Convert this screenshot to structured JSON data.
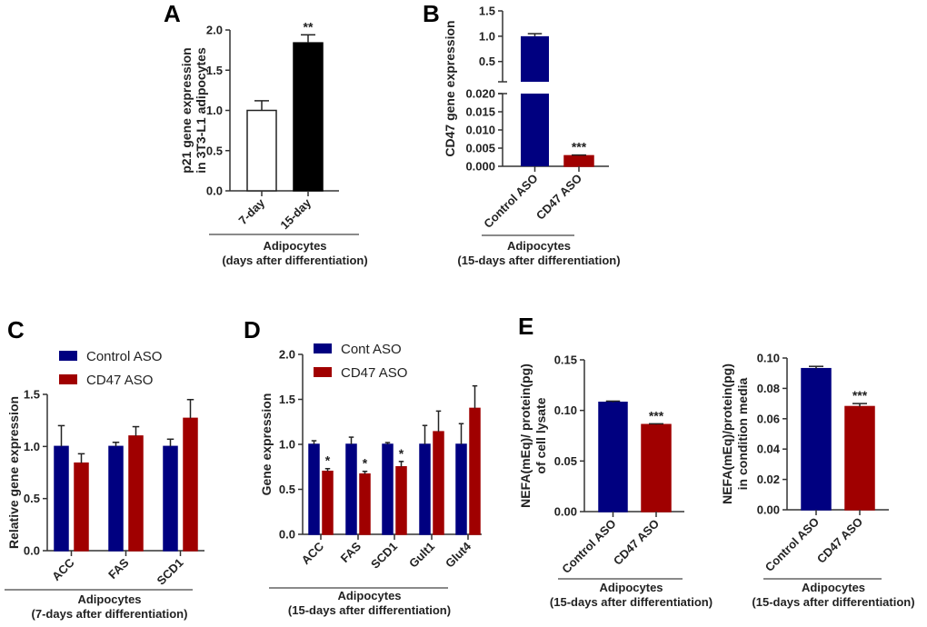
{
  "colors": {
    "control": "#000080",
    "cd47": "#a00000",
    "white": "#ffffff",
    "black": "#000000"
  },
  "chart_data": [
    {
      "panel": "A",
      "type": "bar",
      "ylabel": [
        "p21 gene expression",
        "in 3T3-L1 adipocytes"
      ],
      "ylim": [
        0,
        2.0
      ],
      "yticks": [
        "0.0",
        "0.5",
        "1.0",
        "1.5",
        "2.0"
      ],
      "categories": [
        "7-day",
        "15-day"
      ],
      "series": [
        {
          "values": [
            1.0,
            1.84
          ],
          "errors": [
            0.12,
            0.1
          ],
          "colors": [
            "#ffffff",
            "#000000"
          ]
        }
      ],
      "annotations": [
        "",
        "**"
      ],
      "group_label": [
        "Adipocytes",
        "(days after differentiation)"
      ]
    },
    {
      "panel": "B",
      "type": "bar",
      "ylabel": [
        "CD47 gene expression"
      ],
      "broken_axis": {
        "lower": [
          0,
          0.02
        ],
        "upper": [
          0.1,
          1.5
        ]
      },
      "yticks_lower": [
        "0.000",
        "0.005",
        "0.010",
        "0.015",
        "0.020"
      ],
      "yticks_upper": [
        "0.5",
        "1.0",
        "1.5"
      ],
      "categories": [
        "Control ASO",
        "CD47 ASO"
      ],
      "series": [
        {
          "values": [
            1.0,
            0.0029
          ],
          "errors": [
            0.05,
            0.0002
          ],
          "colors": [
            "#000080",
            "#a00000"
          ]
        }
      ],
      "annotations": [
        "",
        "***"
      ],
      "group_label": [
        "Adipocytes",
        "(15-days after differentiation)"
      ]
    },
    {
      "panel": "C",
      "type": "bar",
      "ylabel": [
        "Relative gene expression"
      ],
      "ylim": [
        0,
        1.5
      ],
      "yticks": [
        "0.0",
        "0.5",
        "1.0",
        "1.5"
      ],
      "categories": [
        "ACC",
        "FAS",
        "SCD1"
      ],
      "series": [
        {
          "name": "Control ASO",
          "values": [
            1.0,
            1.0,
            1.0
          ],
          "errors": [
            0.2,
            0.04,
            0.07
          ],
          "color": "#000080"
        },
        {
          "name": "CD47 ASO",
          "values": [
            0.84,
            1.1,
            1.27
          ],
          "errors": [
            0.09,
            0.09,
            0.18
          ],
          "color": "#a00000"
        }
      ],
      "annotations": [],
      "group_label": [
        "Adipocytes",
        "(7-days after differentiation)"
      ]
    },
    {
      "panel": "D",
      "type": "bar",
      "ylabel": [
        "Gene expression"
      ],
      "ylim": [
        0,
        2.0
      ],
      "yticks": [
        "0.0",
        "0.5",
        "1.0",
        "1.5",
        "2.0"
      ],
      "categories": [
        "ACC",
        "FAS",
        "SCD1",
        "Gult1",
        "Glut4"
      ],
      "series": [
        {
          "name": "Cont ASO",
          "values": [
            1.0,
            1.0,
            1.0,
            1.0,
            1.0
          ],
          "errors": [
            0.04,
            0.08,
            0.02,
            0.21,
            0.23
          ],
          "color": "#000080"
        },
        {
          "name": "CD47 ASO",
          "values": [
            0.7,
            0.67,
            0.75,
            1.14,
            1.4
          ],
          "errors": [
            0.03,
            0.03,
            0.06,
            0.23,
            0.25
          ],
          "color": "#a00000"
        }
      ],
      "annotations": [
        "*",
        "*",
        "*",
        "",
        ""
      ],
      "group_label": [
        "Adipocytes",
        "(15-days after differentiation)"
      ]
    },
    {
      "panel": "E",
      "type": "bar",
      "ylabel": [
        "NEFA(mEq)/ protein(pg)",
        "of cell lysate"
      ],
      "ylim": [
        0,
        0.15
      ],
      "yticks": [
        "0.00",
        "0.05",
        "0.10",
        "0.15"
      ],
      "categories": [
        "Control ASO",
        "CD47 ASO"
      ],
      "series": [
        {
          "values": [
            0.108,
            0.086
          ],
          "errors": [
            0.0012,
            0.0008
          ],
          "colors": [
            "#000080",
            "#a00000"
          ]
        }
      ],
      "annotations": [
        "",
        "***"
      ],
      "group_label": [
        "Adipocytes",
        "(15-days after differentiation)"
      ]
    },
    {
      "panel": "",
      "type": "bar",
      "ylabel": [
        "NEFA(mEq)/protein(pg)",
        "in condition media"
      ],
      "ylim": [
        0,
        0.1
      ],
      "yticks": [
        "0.00",
        "0.02",
        "0.04",
        "0.06",
        "0.08",
        "0.10"
      ],
      "categories": [
        "Control ASO",
        "CD47 ASO"
      ],
      "series": [
        {
          "values": [
            0.093,
            0.068
          ],
          "errors": [
            0.0015,
            0.002
          ],
          "colors": [
            "#000080",
            "#a00000"
          ]
        }
      ],
      "annotations": [
        "",
        "***"
      ],
      "group_label": [
        "Adipocytes",
        "(15-days after differentiation)"
      ]
    }
  ]
}
